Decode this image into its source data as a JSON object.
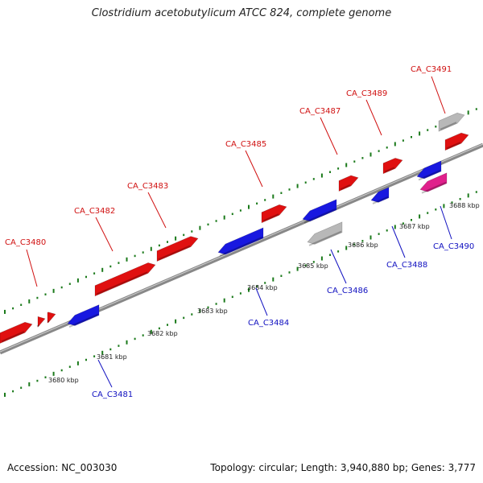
{
  "header": {
    "title": "Clostridium acetobutylicum ATCC 824, complete genome"
  },
  "footer": {
    "accession": "Accession: NC_003030",
    "summary": "Topology: circular; Length: 3,940,880 bp; Genes: 3,777"
  },
  "colors": {
    "forward_gene": "#e01010",
    "reverse_gene": "#1818e0",
    "other_gene": "#b8b8b8",
    "rna_gene": "#e0208c",
    "backbone": "#888888",
    "tick": "#1b7a1b",
    "forward_label": "#d01010",
    "reverse_label": "#1010c0"
  },
  "kbp_ticks": [
    "3680 kbp",
    "3681 kbp",
    "3682 kbp",
    "3683 kbp",
    "3684 kbp",
    "3685 kbp",
    "3686 kbp",
    "3687 kbp",
    "3688 kbp"
  ],
  "genes": [
    {
      "label": "CA_C3480",
      "strand": "forward"
    },
    {
      "label": "CA_C3481",
      "strand": "reverse"
    },
    {
      "label": "CA_C3482",
      "strand": "forward"
    },
    {
      "label": "CA_C3483",
      "strand": "forward"
    },
    {
      "label": "CA_C3484",
      "strand": "reverse"
    },
    {
      "label": "CA_C3485",
      "strand": "forward"
    },
    {
      "label": "CA_C3486",
      "strand": "reverse"
    },
    {
      "label": "CA_C3487",
      "strand": "forward"
    },
    {
      "label": "CA_C3488",
      "strand": "reverse"
    },
    {
      "label": "CA_C3489",
      "strand": "forward"
    },
    {
      "label": "CA_C3490",
      "strand": "reverse"
    },
    {
      "label": "CA_C3491",
      "strand": "forward"
    }
  ]
}
